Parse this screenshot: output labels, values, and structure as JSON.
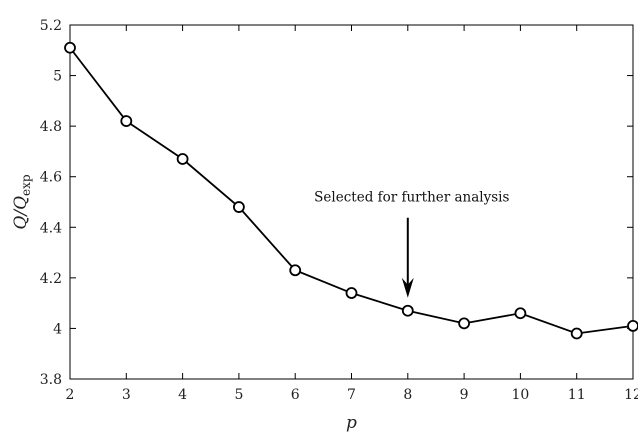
{
  "chart_data": {
    "type": "line",
    "title": "",
    "xlabel": "p",
    "ylabel": "Q/Q_exp",
    "ylabel_main": "Q/Q",
    "ylabel_sub": "exp",
    "xlim": [
      2,
      12
    ],
    "ylim": [
      3.8,
      5.2
    ],
    "xticks": [
      2,
      3,
      4,
      5,
      6,
      7,
      8,
      9,
      10,
      11,
      12
    ],
    "yticks": [
      3.8,
      4,
      4.2,
      4.4,
      4.6,
      4.8,
      5,
      5.2
    ],
    "ytick_labels": [
      "3.8",
      "4",
      "4.2",
      "4.4",
      "4.6",
      "4.8",
      "5",
      "5.2"
    ],
    "grid": false,
    "line_color": "#000000",
    "marker": "open-circle",
    "series": [
      {
        "x": [
          2,
          3,
          4,
          5,
          6,
          7,
          8,
          9,
          10,
          11,
          12
        ],
        "values": [
          5.11,
          4.82,
          4.67,
          4.48,
          4.23,
          4.14,
          4.07,
          4.02,
          4.06,
          3.98,
          4.01
        ]
      }
    ],
    "annotations": [
      {
        "text": "Selected for further analysis",
        "x": 8,
        "y": 4.07
      }
    ]
  }
}
